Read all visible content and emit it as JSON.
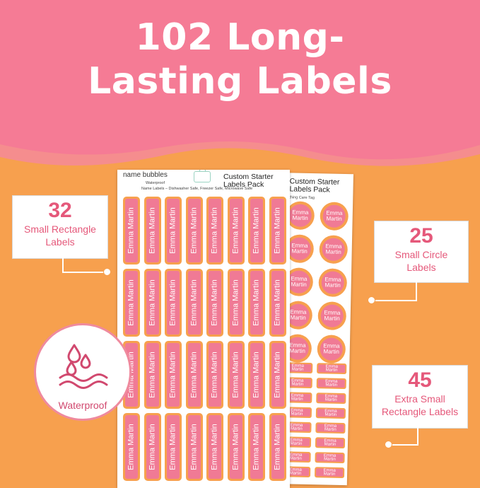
{
  "headline": {
    "line1": "102 Long-",
    "line2": "Lasting Labels"
  },
  "sheet_front": {
    "brand": "name bubbles",
    "waterproof_note": "Waterproof",
    "pack_title": "Custom Starter Labels Pack",
    "caption": "Name Labels – Dishwasher Safe, Freezer Safe, Microwave Safe",
    "label_text": "Emma Martin"
  },
  "sheet_back": {
    "title": "Custom Starter Labels Pack",
    "caption": "thing Care Tag",
    "circle_text": [
      "Emma",
      "Martin"
    ],
    "xs_text": [
      "Emma",
      "Martin"
    ]
  },
  "callouts": {
    "small_rect": {
      "count": "32",
      "text_line1": "Small Rectangle",
      "text_line2": "Labels"
    },
    "small_circle": {
      "count": "25",
      "text_line1": "Small Circle",
      "text_line2": "Labels"
    },
    "xs_rect": {
      "count": "45",
      "text_line1": "Extra Small",
      "text_line2": "Rectangle Labels"
    }
  },
  "badge": {
    "text": "Waterproof",
    "icon": "water-drops-waves-icon"
  },
  "colors": {
    "pink": "#f07a95",
    "orange": "#f7a04e",
    "accent": "#e5587a"
  }
}
